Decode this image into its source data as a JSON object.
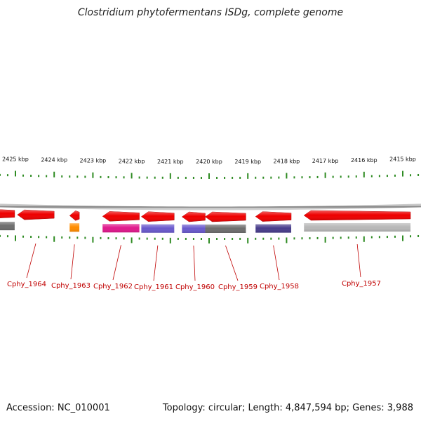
{
  "title": "Clostridium phytofermentans ISDg, complete genome",
  "footer": {
    "accession": "Accession: NC_010001",
    "summary": "Topology: circular; Length: 4,847,594 bp; Genes: 3,988"
  },
  "colors": {
    "backbone": "#8a8a8a",
    "tick": "#2e8b22",
    "label": "#c00000",
    "cds": "#ee0000"
  },
  "scale_labels": [
    "2425 kbp",
    "2424 kbp",
    "2423 kbp",
    "2422 kbp",
    "2421 kbp",
    "2420 kbp",
    "2419 kbp",
    "2418 kbp",
    "2417 kbp",
    "2416 kbp",
    "2415 kbp"
  ],
  "genes": [
    {
      "name": "",
      "start": 2426.0,
      "end": 2425.02,
      "strand": -1
    },
    {
      "name": "Cphy_1964",
      "start": 2424.95,
      "end": 2424.0,
      "strand": -1
    },
    {
      "name": "Cphy_1963",
      "start": 2423.6,
      "end": 2423.35,
      "strand": -1
    },
    {
      "name": "Cphy_1962",
      "start": 2422.75,
      "end": 2421.8,
      "strand": -1
    },
    {
      "name": "Cphy_1961",
      "start": 2421.75,
      "end": 2420.9,
      "strand": -1
    },
    {
      "name": "Cphy_1960",
      "start": 2420.7,
      "end": 2420.1,
      "strand": -1
    },
    {
      "name": "Cphy_1959",
      "start": 2420.1,
      "end": 2419.05,
      "strand": -1
    },
    {
      "name": "Cphy_1958",
      "start": 2418.8,
      "end": 2417.88,
      "strand": -1
    },
    {
      "name": "Cphy_1957",
      "start": 2417.55,
      "end": 2414.8,
      "strand": -1
    }
  ],
  "cog_blocks": [
    {
      "start": 2426.0,
      "end": 2425.02,
      "color": "#6e6e6e"
    },
    {
      "start": 2423.6,
      "end": 2423.35,
      "color": "#ff8c00"
    },
    {
      "start": 2422.75,
      "end": 2421.8,
      "color": "#e0198c"
    },
    {
      "start": 2421.75,
      "end": 2420.9,
      "color": "#6a5acd"
    },
    {
      "start": 2420.7,
      "end": 2420.1,
      "color": "#6a5acd"
    },
    {
      "start": 2420.1,
      "end": 2419.05,
      "color": "#6e6e6e"
    },
    {
      "start": 2418.8,
      "end": 2417.88,
      "color": "#483d8b"
    },
    {
      "start": 2417.55,
      "end": 2414.8,
      "color": "#b8b8b8"
    }
  ]
}
